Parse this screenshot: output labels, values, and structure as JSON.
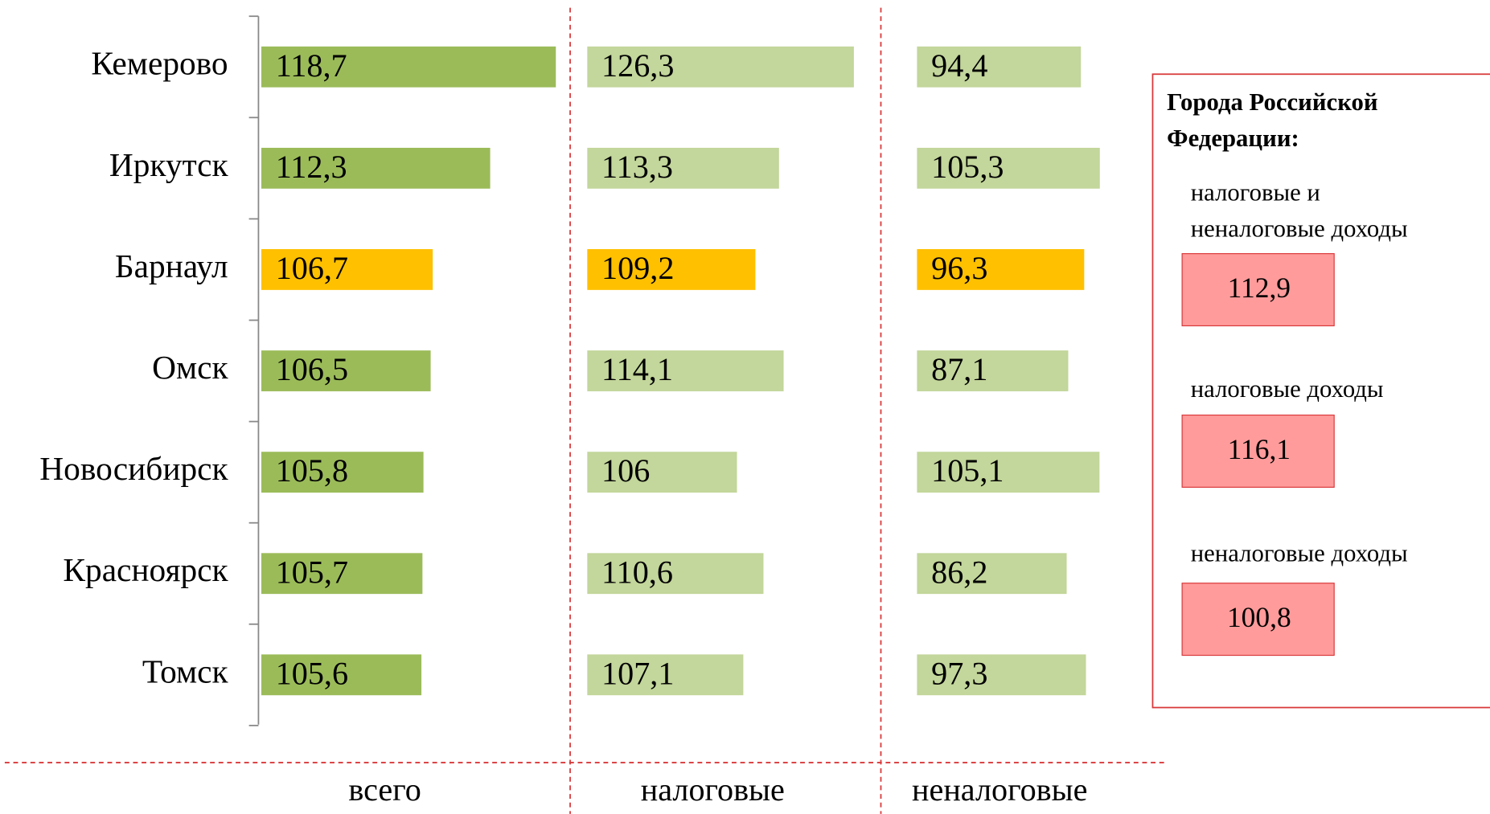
{
  "chart_data": [
    {
      "type": "bar",
      "title": "всего",
      "categories": [
        "Кемерово",
        "Иркутск",
        "Барнаул",
        "Омск",
        "Новосибирск",
        "Красноярск",
        "Томск"
      ],
      "values": [
        118.7,
        112.3,
        106.7,
        106.5,
        105.8,
        105.7,
        105.6
      ],
      "value_labels": [
        "118,7",
        "112,3",
        "106,7",
        "106,5",
        "105,8",
        "105,7",
        "105,6"
      ],
      "colors": [
        "#9bbb59",
        "#9bbb59",
        "#ffc000",
        "#9bbb59",
        "#9bbb59",
        "#9bbb59",
        "#9bbb59"
      ],
      "xlim": [
        90,
        120
      ]
    },
    {
      "type": "bar",
      "title": "налоговые",
      "categories": [
        null,
        null,
        null,
        null,
        null,
        null,
        null
      ],
      "values": [
        126.3,
        113.3,
        109.2,
        114.1,
        106,
        110.6,
        107.1
      ],
      "value_labels": [
        "126,3",
        "113,3",
        "109,2",
        "114,1",
        "106",
        "110,6",
        "107,1"
      ],
      "colors": [
        "#c3d69b",
        "#c3d69b",
        "#ffc000",
        "#c3d69b",
        "#c3d69b",
        "#c3d69b",
        "#c3d69b"
      ],
      "xlim": [
        80,
        130
      ]
    },
    {
      "type": "bar",
      "title": "неналоговые",
      "categories": [
        null,
        null,
        null,
        null,
        null,
        null,
        null
      ],
      "values": [
        94.4,
        105.3,
        96.3,
        87.1,
        105.1,
        86.2,
        97.3
      ],
      "value_labels": [
        "94,4",
        "105,3",
        "96,3",
        "87,1",
        "105,1",
        "86,2",
        "97,3"
      ],
      "colors": [
        "#c3d69b",
        "#c3d69b",
        "#ffc000",
        "#c3d69b",
        "#c3d69b",
        "#c3d69b",
        "#c3d69b"
      ],
      "xlim": [
        0,
        110
      ]
    }
  ],
  "rf_box": {
    "title_lines": [
      "Города Российской",
      "Федерации:"
    ],
    "items": [
      {
        "label_lines": [
          "налоговые и",
          "неналоговые доходы"
        ],
        "value": 112.9,
        "value_label": "112,9"
      },
      {
        "label_lines": [
          "налоговые доходы"
        ],
        "value": 116.1,
        "value_label": "116,1"
      },
      {
        "label_lines": [
          "неналоговые доходы"
        ],
        "value": 100.8,
        "value_label": "100,8"
      }
    ]
  }
}
